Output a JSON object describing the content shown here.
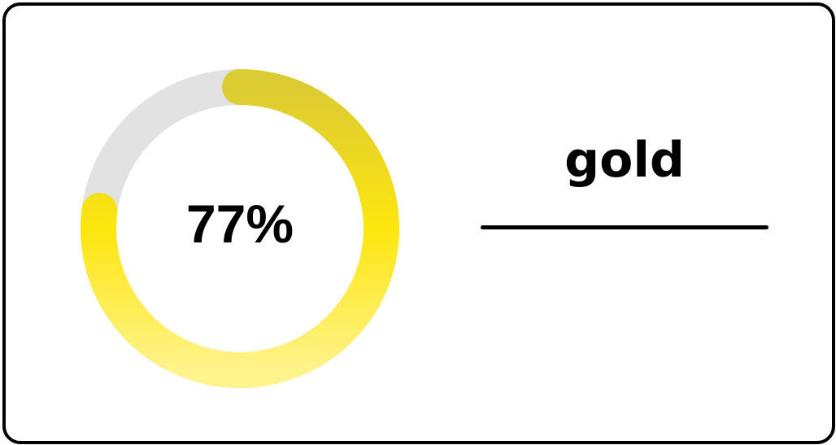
{
  "card": {
    "label": "gold"
  },
  "chart_data": {
    "type": "pie",
    "variant": "donut",
    "value_percent": 77,
    "value_label": "77%",
    "colors": {
      "track": "#e2e2e2",
      "fill_start": "#ddcb33",
      "fill_mid": "#fde60e",
      "fill_end": "#fff38c"
    }
  }
}
